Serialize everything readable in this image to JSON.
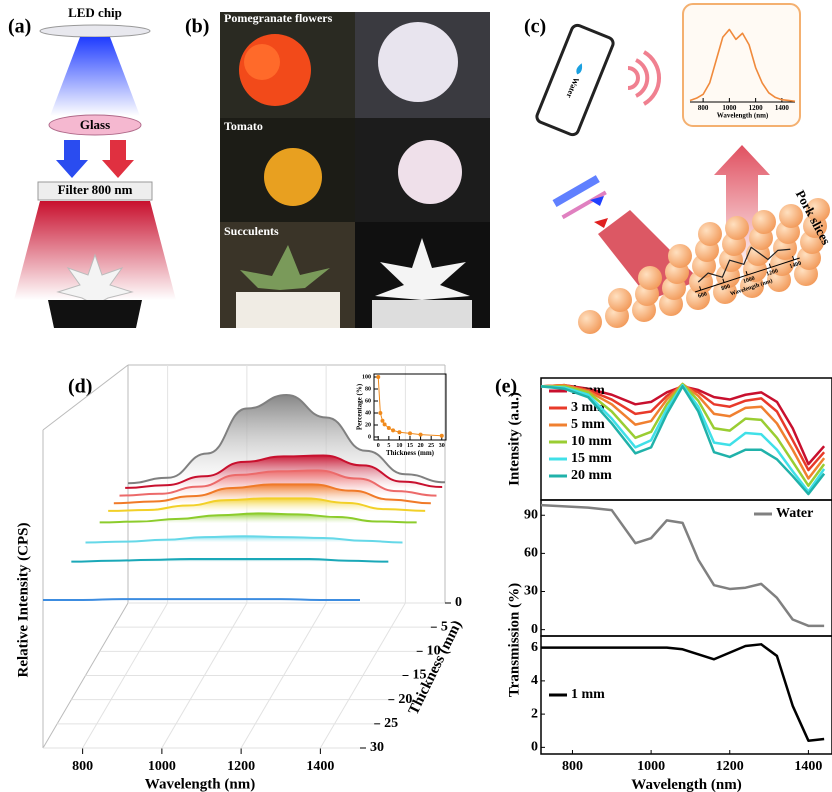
{
  "panels": {
    "a": {
      "label": "(a)",
      "led_chip": "LED chip",
      "glass": "Glass",
      "filter": "Filter 800 nm"
    },
    "b": {
      "label": "(b)",
      "samples": [
        "Pomegranate flowers",
        "Tomato",
        "Succulents"
      ]
    },
    "c": {
      "label": "(c)",
      "phone_text": "Water",
      "sample": "Pork slices"
    },
    "d": {
      "label": "(d)"
    },
    "e": {
      "label": "(e)"
    }
  },
  "chart_data": [
    {
      "type": "line",
      "xlabel": "Wavelength (nm)",
      "x": [
        700,
        750,
        800,
        850,
        900,
        950,
        1000,
        1050,
        1100,
        1150,
        1200,
        1250,
        1300,
        1350,
        1400,
        1450,
        1500
      ],
      "values": [
        0.02,
        0.05,
        0.1,
        0.25,
        0.55,
        0.85,
        0.95,
        0.82,
        0.9,
        0.75,
        0.45,
        0.25,
        0.12,
        0.06,
        0.03,
        0.02,
        0.01
      ],
      "color": "#f08a3c",
      "xlim": [
        700,
        1500
      ],
      "ylim": [
        0,
        1.1
      ],
      "xticks": [
        800,
        1000,
        1200,
        1400
      ]
    },
    {
      "type": "line",
      "xlabel": "Wavelength (nm)",
      "x": [
        600,
        700,
        800,
        900,
        1000,
        1100,
        1200,
        1300,
        1400
      ],
      "values": [
        0.3,
        0.5,
        0.2,
        0.7,
        0.4,
        0.9,
        0.3,
        0.5,
        0.4
      ],
      "color": "#222222",
      "xlim": [
        550,
        1450
      ],
      "ylim": [
        0,
        1
      ],
      "xticks": [
        600,
        800,
        1000,
        1200,
        1400
      ]
    },
    {
      "type": "waterfall",
      "xlabel": "Wavelength (nm)",
      "ylabel": "Relative Intensity (CPS)",
      "zlabel": "Thickness (mm)",
      "x": [
        700,
        800,
        900,
        1000,
        1100,
        1200,
        1300,
        1400,
        1500
      ],
      "xlim": [
        700,
        1500
      ],
      "xticks": [
        800,
        1000,
        1200,
        1400
      ],
      "zlim": [
        0,
        30
      ],
      "zticks": [
        0,
        5,
        10,
        15,
        20,
        25,
        30
      ],
      "series": [
        {
          "z": 0,
          "color": "#808080",
          "values": [
            2,
            8,
            35,
            85,
            100,
            75,
            38,
            12,
            3
          ]
        },
        {
          "z": 1,
          "color": "#c8102e",
          "values": [
            1,
            4,
            14,
            30,
            36,
            37,
            26,
            8,
            2
          ]
        },
        {
          "z": 3,
          "color": "#ec6a6a",
          "values": [
            1,
            3,
            11,
            24,
            28,
            29,
            20,
            6,
            1
          ]
        },
        {
          "z": 5,
          "color": "#f07a28",
          "values": [
            1,
            3,
            9,
            18,
            22,
            22,
            15,
            5,
            1
          ]
        },
        {
          "z": 7,
          "color": "#f2d028",
          "values": [
            1,
            2,
            7,
            13,
            15,
            15,
            10,
            3,
            1
          ]
        },
        {
          "z": 10,
          "color": "#8ccc2c",
          "values": [
            1,
            2,
            5,
            9,
            11,
            10,
            7,
            2,
            1
          ]
        },
        {
          "z": 15,
          "color": "#66d8e8",
          "values": [
            0,
            1,
            3,
            6,
            7,
            6,
            5,
            2,
            0
          ]
        },
        {
          "z": 20,
          "color": "#1aa8b8",
          "values": [
            0,
            1,
            2,
            3,
            3,
            3,
            3,
            1,
            0
          ]
        },
        {
          "z": 30,
          "color": "#3c8ce0",
          "values": [
            0,
            0,
            1,
            1,
            1,
            1,
            1,
            0,
            0
          ]
        }
      ]
    },
    {
      "type": "line",
      "markers": true,
      "xlabel": "Thickness (mm)",
      "ylabel": "Percentage (%)",
      "x": [
        0,
        1,
        2,
        3,
        5,
        7,
        10,
        15,
        20,
        30
      ],
      "values": [
        100,
        40,
        27,
        21,
        15,
        11,
        8,
        6,
        4,
        2
      ],
      "color": "#f08a1c",
      "xlim": [
        -2,
        32
      ],
      "ylim": [
        -5,
        105
      ],
      "xticks": [
        0,
        5,
        10,
        15,
        20,
        25,
        30
      ],
      "yticks": [
        0,
        20,
        40,
        60,
        80,
        100
      ]
    },
    {
      "type": "line",
      "ylabel": "Intensity (a.u.)",
      "x": [
        720,
        780,
        840,
        900,
        960,
        1000,
        1040,
        1080,
        1120,
        1160,
        1200,
        1240,
        1280,
        1320,
        1360,
        1400,
        1440
      ],
      "xlim": [
        720,
        1460
      ],
      "ylim": [
        0,
        1.02
      ],
      "legend": "upper left",
      "series": [
        {
          "name": "1 mm",
          "color": "#c8102e",
          "values": [
            0.95,
            0.96,
            0.93,
            0.88,
            0.8,
            0.82,
            0.9,
            0.95,
            0.92,
            0.86,
            0.84,
            0.88,
            0.9,
            0.82,
            0.6,
            0.3,
            0.45
          ]
        },
        {
          "name": "3 mm",
          "color": "#e83a2a",
          "values": [
            0.95,
            0.96,
            0.92,
            0.84,
            0.72,
            0.74,
            0.87,
            0.96,
            0.9,
            0.8,
            0.78,
            0.83,
            0.85,
            0.74,
            0.5,
            0.25,
            0.4
          ]
        },
        {
          "name": "5 mm",
          "color": "#f08030",
          "values": [
            0.95,
            0.96,
            0.91,
            0.8,
            0.63,
            0.66,
            0.84,
            0.97,
            0.87,
            0.72,
            0.7,
            0.77,
            0.78,
            0.64,
            0.42,
            0.18,
            0.35
          ]
        },
        {
          "name": "10 mm",
          "color": "#9acd32",
          "values": [
            0.95,
            0.95,
            0.9,
            0.74,
            0.52,
            0.57,
            0.8,
            0.97,
            0.83,
            0.6,
            0.58,
            0.68,
            0.67,
            0.52,
            0.32,
            0.12,
            0.3
          ]
        },
        {
          "name": "15 mm",
          "color": "#40e0e8",
          "values": [
            0.95,
            0.94,
            0.88,
            0.68,
            0.44,
            0.5,
            0.76,
            0.96,
            0.78,
            0.48,
            0.46,
            0.56,
            0.55,
            0.42,
            0.24,
            0.07,
            0.26
          ]
        },
        {
          "name": "20 mm",
          "color": "#20b2aa",
          "values": [
            0.95,
            0.93,
            0.86,
            0.64,
            0.39,
            0.44,
            0.72,
            0.95,
            0.74,
            0.4,
            0.36,
            0.42,
            0.42,
            0.34,
            0.2,
            0.05,
            0.22
          ]
        }
      ]
    },
    {
      "type": "line",
      "ylabel": "Transmission (%)",
      "x": [
        720,
        780,
        840,
        900,
        960,
        1000,
        1040,
        1080,
        1120,
        1160,
        1200,
        1240,
        1280,
        1320,
        1360,
        1400,
        1440
      ],
      "xlim": [
        720,
        1460
      ],
      "ylim": [
        -5,
        102
      ],
      "yticks": [
        0,
        30,
        60,
        90
      ],
      "legend": "upper right",
      "series": [
        {
          "name": "Water",
          "color": "#808080",
          "values": [
            98,
            97,
            96,
            94,
            68,
            72,
            86,
            84,
            55,
            35,
            32,
            33,
            36,
            25,
            8,
            3,
            3
          ]
        }
      ]
    },
    {
      "type": "line",
      "xlabel": "Wavelength (nm)",
      "x": [
        720,
        780,
        840,
        900,
        960,
        1000,
        1040,
        1080,
        1120,
        1160,
        1200,
        1240,
        1280,
        1320,
        1360,
        1400,
        1440
      ],
      "xlim": [
        720,
        1460
      ],
      "ylim": [
        -0.4,
        6.7
      ],
      "yticks": [
        0,
        2,
        4,
        6
      ],
      "xticks": [
        800,
        1000,
        1200,
        1400
      ],
      "legend": "center left",
      "series": [
        {
          "name": "1 mm",
          "color": "#000000",
          "values": [
            6,
            6,
            6,
            6,
            6,
            6,
            6,
            5.9,
            5.6,
            5.3,
            5.7,
            6.1,
            6.2,
            5.5,
            2.5,
            0.4,
            0.5
          ]
        }
      ]
    }
  ]
}
